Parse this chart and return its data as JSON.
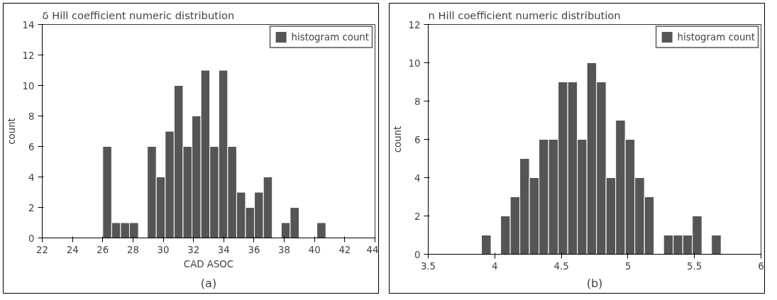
{
  "chart_data": [
    {
      "type": "histogram",
      "title": "δ Hill coefficient numeric distribution",
      "xlabel": "CAD ASOC",
      "ylabel": "count",
      "bins": [
        26,
        26.59,
        27.18,
        27.77,
        28.36,
        28.95,
        29.54,
        30.13,
        30.72,
        31.31,
        31.9,
        32.49,
        33.08,
        33.67,
        34.26,
        34.85,
        35.44,
        36.03,
        36.62,
        37.21,
        37.8,
        38.39,
        38.98,
        39.57,
        40.16,
        40.75
      ],
      "series": [
        {
          "name": "histogram count",
          "color": "#555555",
          "values": [
            6,
            1,
            1,
            1,
            0,
            6,
            4,
            7,
            10,
            6,
            8,
            11,
            6,
            11,
            6,
            3,
            2,
            3,
            4,
            0,
            1,
            2,
            0,
            0,
            1
          ]
        }
      ],
      "xlim": [
        22,
        44
      ],
      "xticks": [
        22,
        24,
        26,
        28,
        30,
        32,
        34,
        36,
        38,
        40,
        42,
        44
      ],
      "ylim": [
        0,
        14
      ],
      "yticks": [
        0,
        2,
        4,
        6,
        8,
        10,
        12,
        14
      ],
      "grid": false,
      "legend": "top right",
      "annotations": [
        "(a)"
      ]
    },
    {
      "type": "histogram",
      "title": "n Hill coefficient numeric distribution",
      "ylabel": "count",
      "bins": [
        3.9,
        3.972,
        4.044,
        4.116,
        4.188,
        4.26,
        4.332,
        4.404,
        4.476,
        4.548,
        4.62,
        4.692,
        4.764,
        4.836,
        4.908,
        4.98,
        5.052,
        5.124,
        5.196,
        5.268,
        5.34,
        5.412,
        5.484,
        5.556,
        5.628,
        5.7
      ],
      "series": [
        {
          "name": "histogram count",
          "color": "#555555",
          "values": [
            1,
            0,
            2,
            3,
            5,
            4,
            6,
            6,
            9,
            9,
            6,
            10,
            9,
            4,
            7,
            6,
            4,
            3,
            0,
            1,
            1,
            1,
            2,
            0,
            1
          ]
        }
      ],
      "xlim": [
        3.5,
        6
      ],
      "xticks": [
        3.5,
        4,
        4.5,
        5,
        5.5,
        6
      ],
      "ylim": [
        0,
        12
      ],
      "yticks": [
        0,
        2,
        4,
        6,
        8,
        10,
        12
      ],
      "grid": false,
      "legend": "top right",
      "annotations": [
        "(b)"
      ]
    }
  ]
}
